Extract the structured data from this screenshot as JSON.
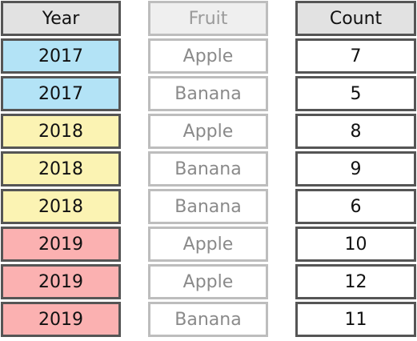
{
  "headers": {
    "year": "Year",
    "fruit": "Fruit",
    "count": "Count"
  },
  "rows": [
    {
      "year": "2017",
      "fruit": "Apple",
      "count": "7"
    },
    {
      "year": "2017",
      "fruit": "Banana",
      "count": "5"
    },
    {
      "year": "2018",
      "fruit": "Apple",
      "count": "8"
    },
    {
      "year": "2018",
      "fruit": "Banana",
      "count": "9"
    },
    {
      "year": "2018",
      "fruit": "Banana",
      "count": "6"
    },
    {
      "year": "2019",
      "fruit": "Apple",
      "count": "10"
    },
    {
      "year": "2019",
      "fruit": "Apple",
      "count": "12"
    },
    {
      "year": "2019",
      "fruit": "Banana",
      "count": "11"
    }
  ],
  "colors": {
    "2017": "#b3e3f6",
    "2018": "#fbf3b3",
    "2019": "#fbb1b1",
    "header": "#e2e2e2"
  }
}
